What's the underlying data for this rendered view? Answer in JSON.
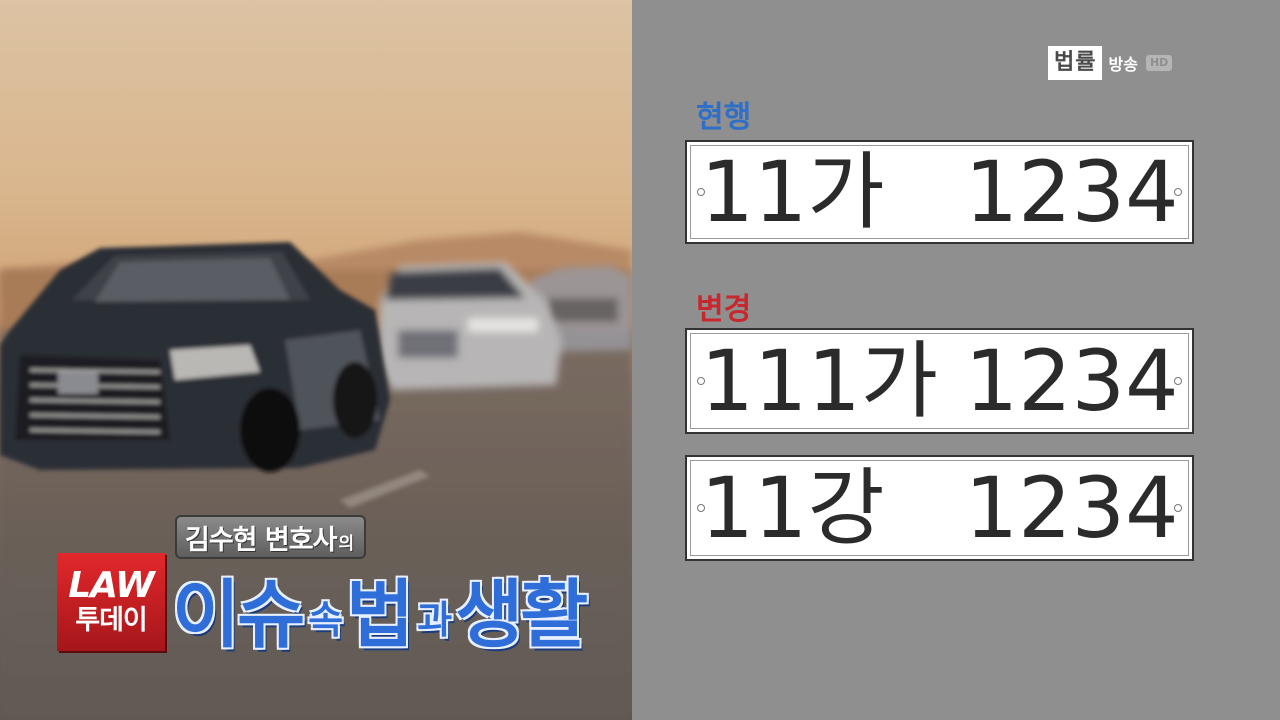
{
  "broadcaster": {
    "logo_box": "법률",
    "logo_text": "방송",
    "hd_badge": "HD"
  },
  "labels": {
    "current": "현행",
    "changed": "변경"
  },
  "plates": {
    "current": "11가   1234",
    "changed_1": "111가 1234",
    "changed_2": "11강   1234"
  },
  "program": {
    "subtitle_name": "김수현 변호사",
    "subtitle_suffix": "의",
    "badge_line1": "LAW",
    "badge_line2": "투데이",
    "title_part1": "이슈",
    "title_part2": "속",
    "title_part3": "법",
    "title_part4": "과",
    "title_part5": "생활"
  },
  "colors": {
    "current_label": "#2f6fc7",
    "changed_label": "#c8282d",
    "badge_red": "#e2282c",
    "title_blue": "#2f6ed8",
    "panel_gray": "#8f8f8f"
  }
}
